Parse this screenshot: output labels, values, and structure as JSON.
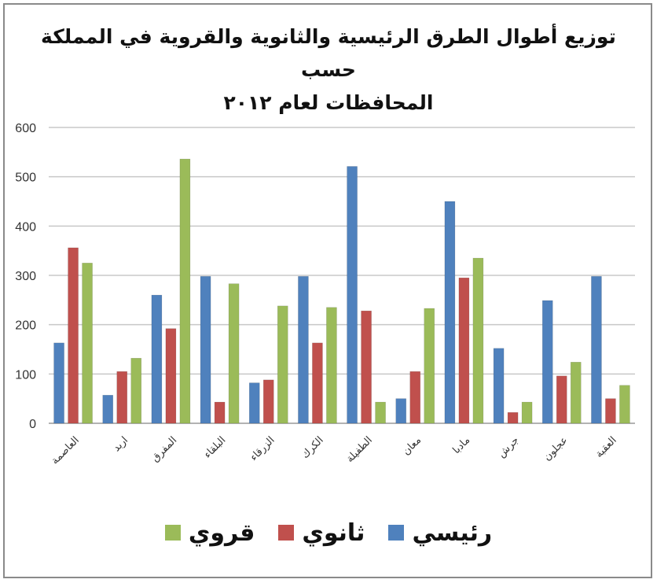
{
  "chart_data": {
    "type": "bar",
    "title_line1": "توزيع أطوال الطرق الرئيسية والثانوية والقروية في المملكة حسب",
    "title_line2": "المحافظات لعام ٢٠١٢",
    "categories": [
      "العاصمة",
      "اربد",
      "المفرق",
      "البلقاء",
      "الزرقاء",
      "الكرك",
      "الطفيلة",
      "معان",
      "مادبا",
      "جرش",
      "عجلون",
      "العقبة"
    ],
    "series": [
      {
        "name": "رئيسي",
        "color": "#4F81BD",
        "values": [
          163,
          57,
          260,
          298,
          82,
          298,
          521,
          50,
          450,
          152,
          249,
          298
        ]
      },
      {
        "name": "ثانوي",
        "color": "#C0504D",
        "values": [
          356,
          105,
          192,
          43,
          88,
          163,
          228,
          105,
          295,
          22,
          96,
          50
        ]
      },
      {
        "name": "قروي",
        "color": "#9BBB59",
        "values": [
          325,
          132,
          536,
          283,
          238,
          235,
          43,
          233,
          335,
          43,
          124,
          77
        ]
      }
    ],
    "ylim": [
      0,
      600
    ],
    "yticks": [
      0,
      100,
      200,
      300,
      400,
      500,
      600
    ],
    "grid": true,
    "legend_position": "bottom"
  }
}
